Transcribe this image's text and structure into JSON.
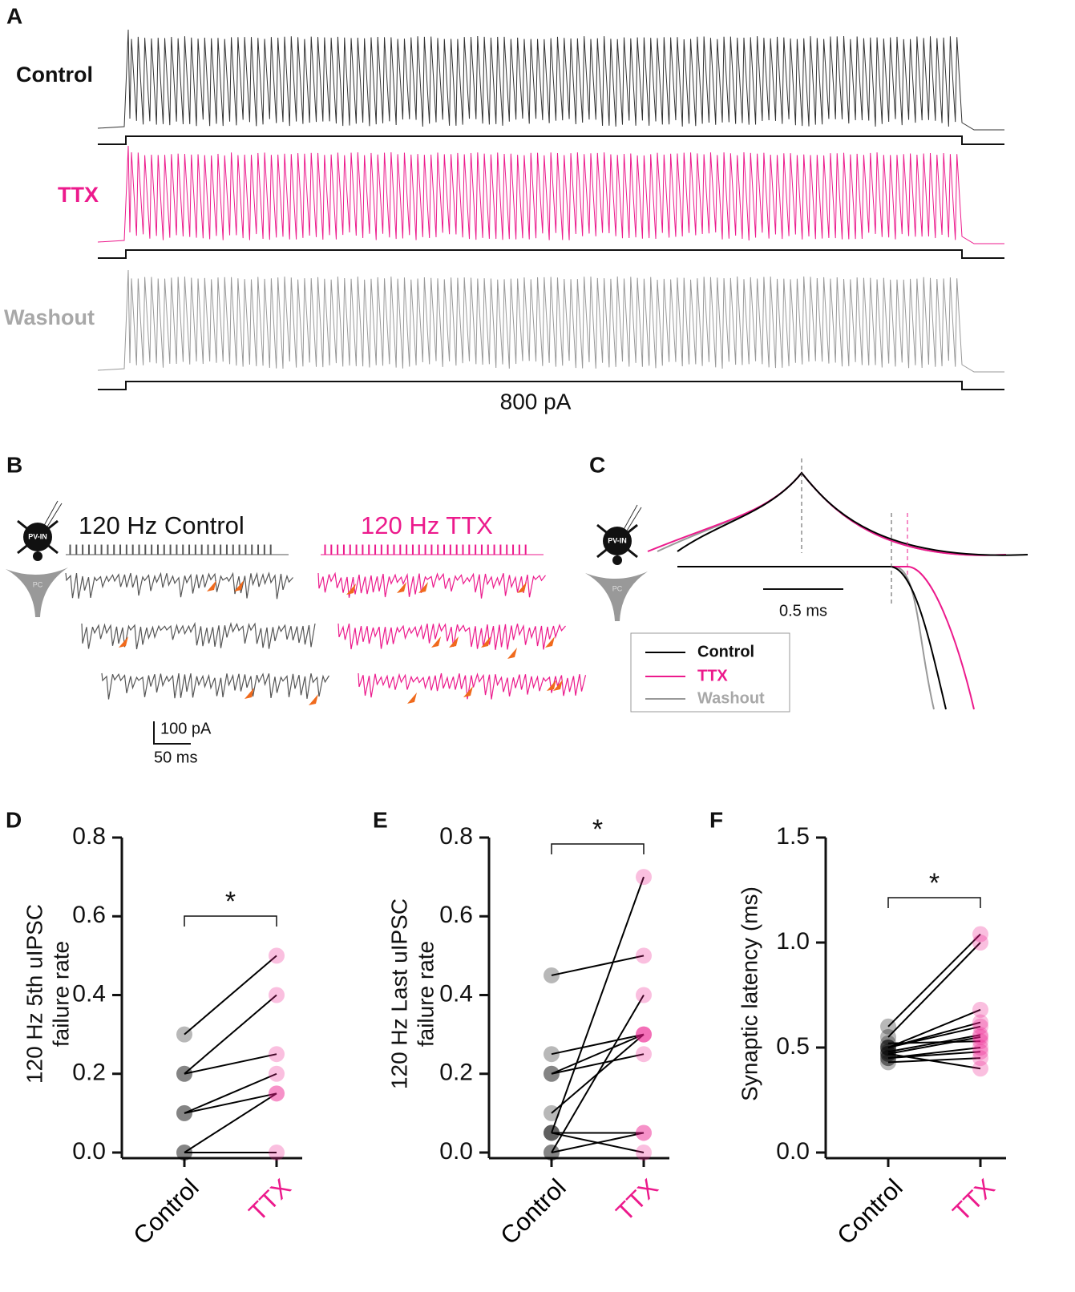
{
  "panel_a": {
    "label": "A",
    "traces": [
      "Control",
      "TTX",
      "Washout"
    ],
    "stimulus": "800 pA"
  },
  "panel_b": {
    "label": "B",
    "cells": [
      "PV-IN",
      "PC"
    ],
    "titles": [
      "120 Hz Control",
      "120 Hz TTX"
    ],
    "scale_y": "100 pA",
    "scale_x": "50 ms"
  },
  "panel_c": {
    "label": "C",
    "cells": [
      "PV-IN",
      "PC"
    ],
    "scale_x": "0.5 ms",
    "legend": [
      "Control",
      "TTX",
      "Washout"
    ]
  },
  "chart_data": [
    {
      "type": "paired",
      "panel": "D",
      "ylabel": [
        "120 Hz 5th uIPSC",
        "failure rate"
      ],
      "categories": [
        "Control",
        "TTX"
      ],
      "category_colors": [
        "#000000",
        "#ec1a8c"
      ],
      "series": [
        {
          "values": [
            0.3,
            0.5
          ]
        },
        {
          "values": [
            0.2,
            0.4
          ]
        },
        {
          "values": [
            0.2,
            0.25
          ]
        },
        {
          "values": [
            0.1,
            0.2
          ]
        },
        {
          "values": [
            0.1,
            0.15
          ]
        },
        {
          "values": [
            0,
            0.15
          ]
        },
        {
          "values": [
            0,
            0
          ]
        }
      ],
      "ylim": [
        0,
        0.8
      ],
      "yticks": [
        {
          "value": 0,
          "label": "0.0"
        },
        0.2,
        0.4,
        0.6,
        0.8
      ],
      "significance": "*"
    },
    {
      "type": "paired",
      "panel": "E",
      "ylabel": [
        "120 Hz Last uIPSC",
        "failure rate"
      ],
      "categories": [
        "Control",
        "TTX"
      ],
      "category_colors": [
        "#000000",
        "#ec1a8c"
      ],
      "series": [
        {
          "values": [
            0.45,
            0.5
          ]
        },
        {
          "values": [
            0.05,
            0.7
          ]
        },
        {
          "values": [
            0.25,
            0.3
          ]
        },
        {
          "values": [
            0.2,
            0.3
          ]
        },
        {
          "values": [
            0.2,
            0.25
          ]
        },
        {
          "values": [
            0,
            0.4
          ]
        },
        {
          "values": [
            0.1,
            0.3
          ]
        },
        {
          "values": [
            0.05,
            0.05
          ]
        },
        {
          "values": [
            0,
            0.05
          ]
        },
        {
          "values": [
            0.05,
            0
          ]
        }
      ],
      "ylim": [
        0,
        0.8
      ],
      "yticks": [
        {
          "value": 0,
          "label": "0.0"
        },
        0.2,
        0.4,
        0.6,
        0.8
      ],
      "significance": "*"
    },
    {
      "type": "paired",
      "panel": "F",
      "ylabel": [
        "Synaptic latency (ms)"
      ],
      "categories": [
        "Control",
        "TTX"
      ],
      "category_colors": [
        "#000000",
        "#ec1a8c"
      ],
      "series": [
        {
          "values": [
            0.6,
            1.04
          ]
        },
        {
          "values": [
            0.55,
            1.0
          ]
        },
        {
          "values": [
            0.5,
            0.68
          ]
        },
        {
          "values": [
            0.5,
            0.62
          ]
        },
        {
          "values": [
            0.48,
            0.56
          ]
        },
        {
          "values": [
            0.47,
            0.55
          ]
        },
        {
          "values": [
            0.52,
            0.53
          ]
        },
        {
          "values": [
            0.45,
            0.5
          ]
        },
        {
          "values": [
            0.45,
            0.48
          ]
        },
        {
          "values": [
            0.43,
            0.45
          ]
        },
        {
          "values": [
            0.47,
            0.4
          ]
        },
        {
          "values": [
            0.5,
            0.6
          ]
        }
      ],
      "ylim": [
        0,
        1.5
      ],
      "yticks": [
        {
          "value": 0,
          "label": "0.0"
        },
        0.5,
        {
          "value": 1,
          "label": "1.0"
        },
        1.5
      ],
      "significance": "*"
    }
  ]
}
